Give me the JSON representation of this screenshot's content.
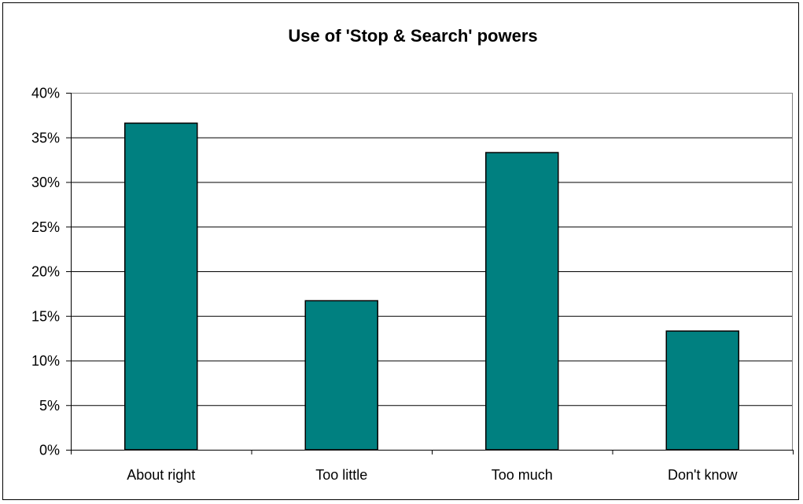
{
  "chart_data": {
    "type": "bar",
    "title": "Use of 'Stop & Search' powers",
    "xlabel": "",
    "ylabel": "",
    "categories": [
      "About right",
      "Too little",
      "Too much",
      "Don't know"
    ],
    "values": [
      36.6,
      16.7,
      33.3,
      13.3
    ],
    "ylim": [
      0,
      40
    ],
    "ytick_values": [
      0,
      5,
      10,
      15,
      20,
      25,
      30,
      35,
      40
    ],
    "ytick_labels": [
      "0%",
      "5%",
      "10%",
      "15%",
      "20%",
      "25%",
      "30%",
      "35%",
      "40%"
    ],
    "grid": true,
    "legend": "none",
    "colors": {
      "bar_fill": "#008080",
      "bar_stroke": "#000000",
      "plot_background": "#ffffff",
      "gridline": "#000000"
    }
  }
}
